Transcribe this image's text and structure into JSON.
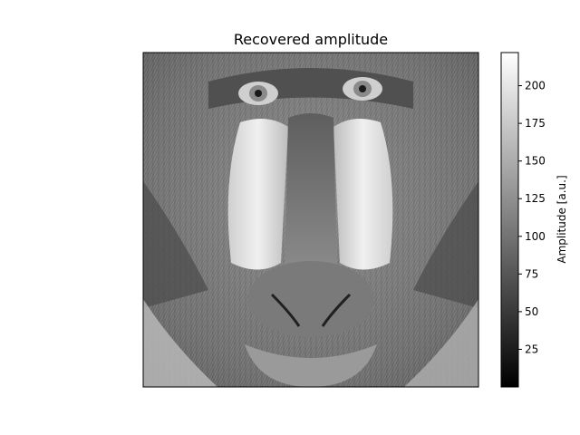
{
  "figure": {
    "title": "Recovered amplitude",
    "image_description_icon": "mandrill-face-grayscale-image"
  },
  "colorbar": {
    "label": "Amplitude [a.u.]",
    "colormap": "gray",
    "color_low": "#000000",
    "color_high": "#ffffff",
    "range": [
      0,
      222
    ],
    "ticks": [
      "25",
      "50",
      "75",
      "100",
      "125",
      "150",
      "175",
      "200"
    ]
  }
}
